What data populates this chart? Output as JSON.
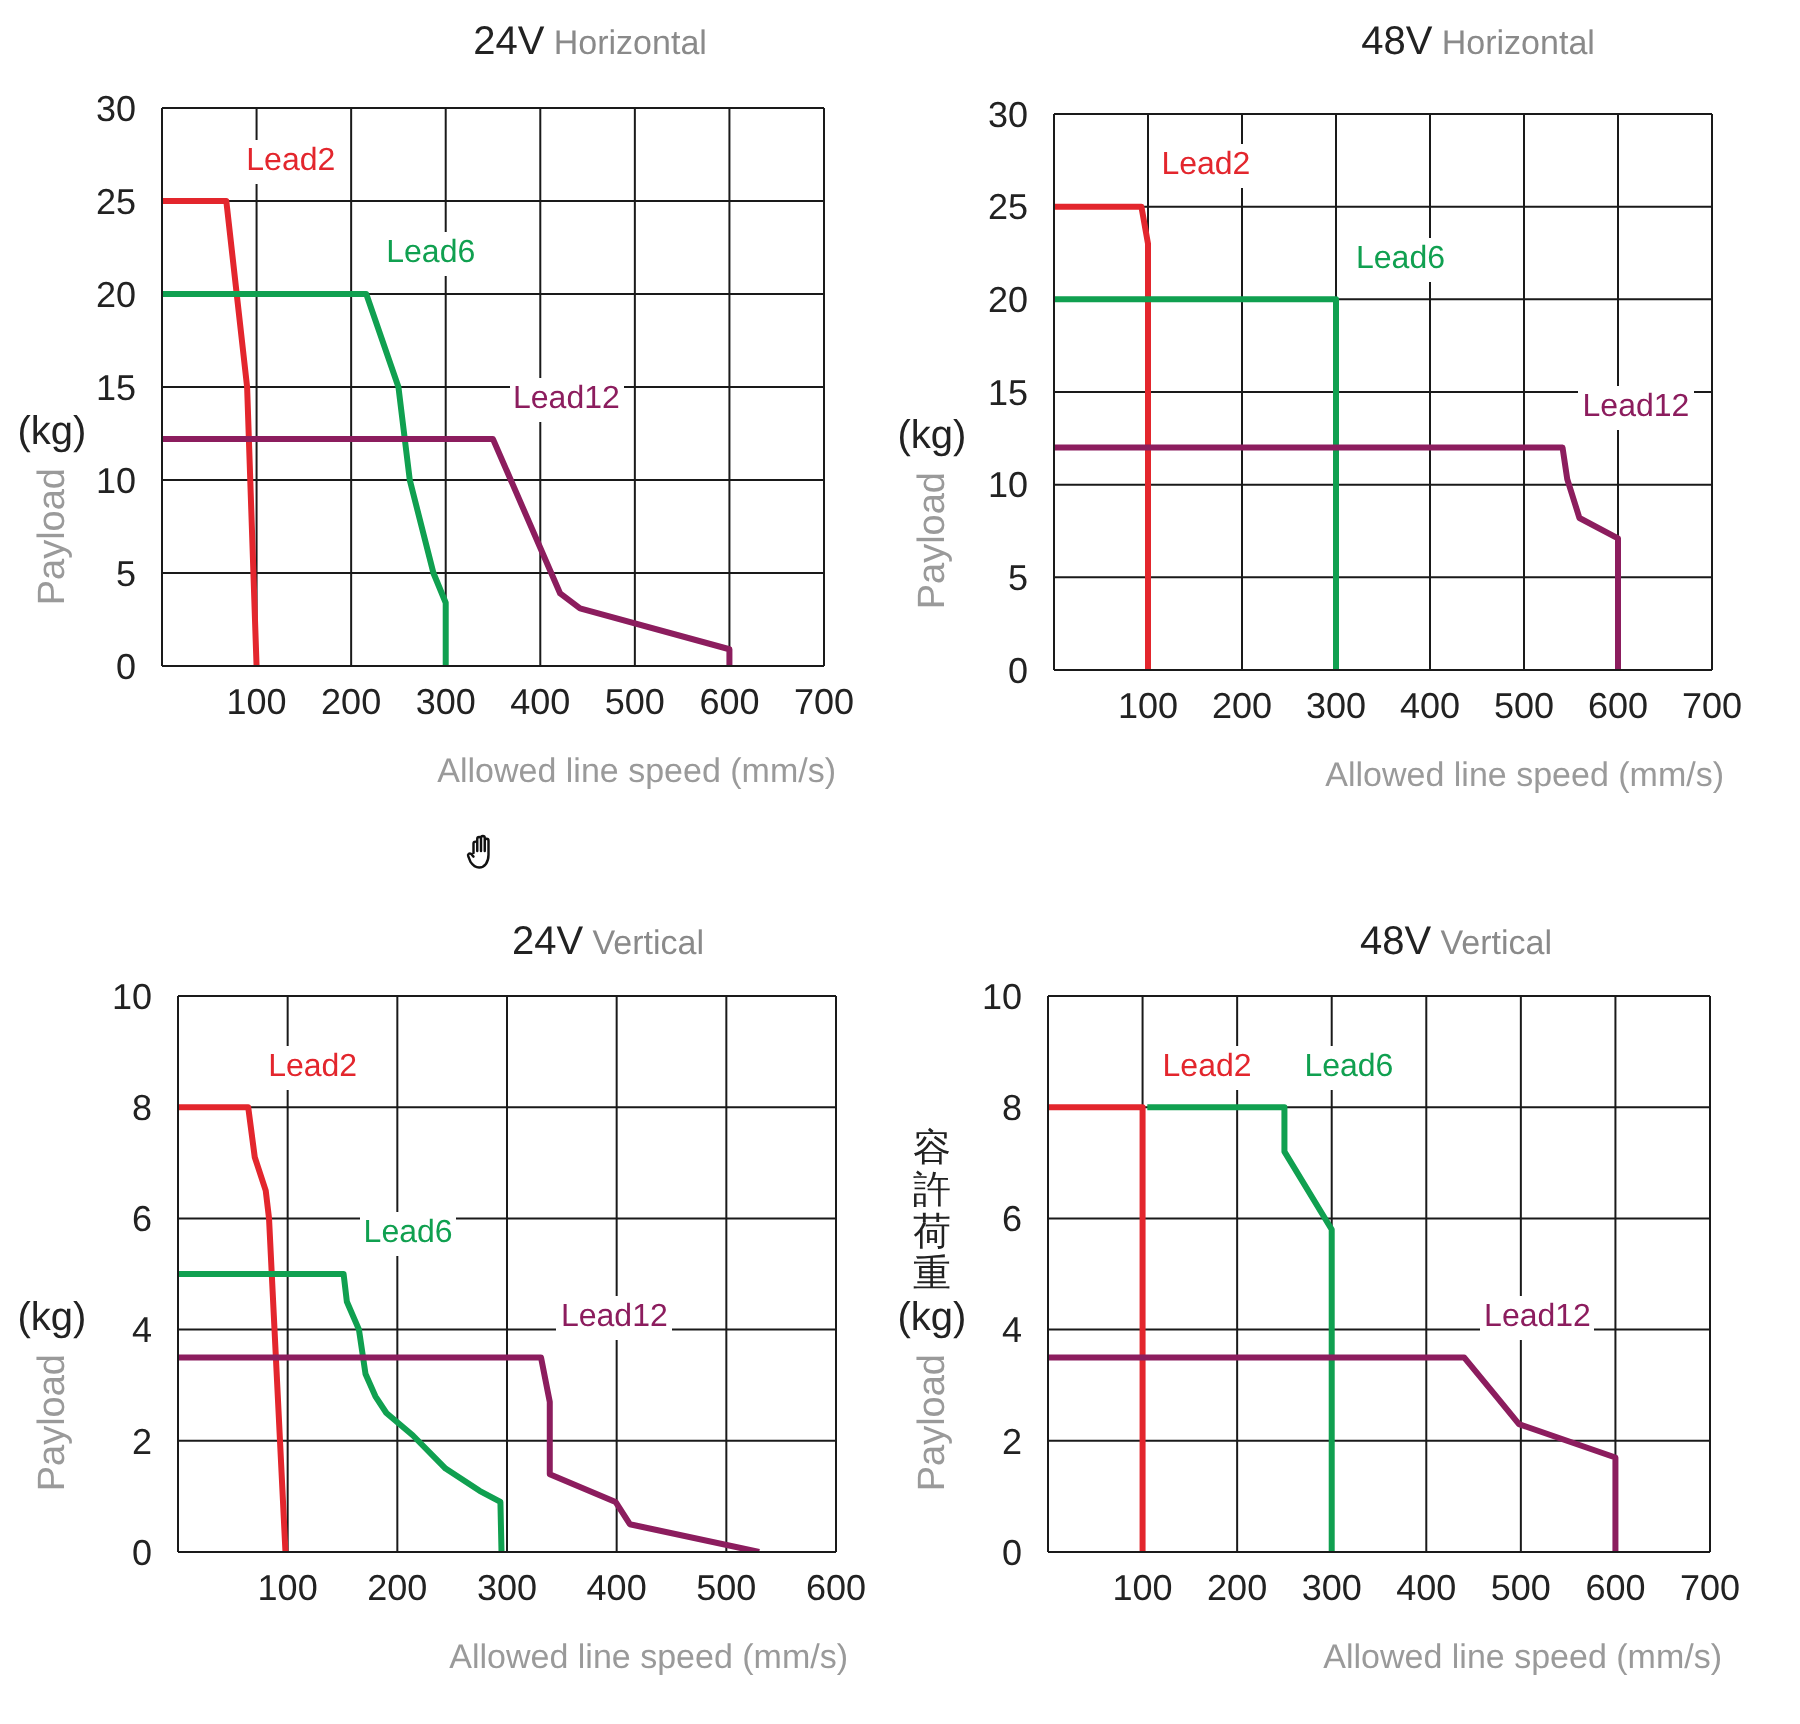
{
  "chart_data": [
    {
      "type": "line",
      "title": "24V Horizontal",
      "xlabel": "Allowed line speed (mm/s)",
      "ylabel": "(kg) Payload",
      "xlim": [
        0,
        700
      ],
      "xticks": [
        100,
        200,
        300,
        400,
        500,
        600,
        700
      ],
      "ylim": [
        0,
        30
      ],
      "yticks": [
        0,
        5,
        10,
        15,
        20,
        25,
        30
      ],
      "grid": true,
      "series": [
        {
          "name": "Lead2",
          "color": "#e3262d",
          "x": [
            0,
            68,
            90,
            100
          ],
          "values": [
            25,
            25,
            15,
            0
          ]
        },
        {
          "name": "Lead6",
          "color": "#10a050",
          "x": [
            0,
            216,
            250,
            262,
            287,
            300,
            300
          ],
          "values": [
            20,
            20,
            15,
            10,
            5,
            3.4,
            0
          ]
        },
        {
          "name": "Lead12",
          "color": "#8c1d5e",
          "x": [
            0,
            350,
            421,
            442,
            600,
            600
          ],
          "values": [
            12.2,
            12.2,
            3.9,
            3.1,
            0.9,
            0
          ]
        }
      ]
    },
    {
      "type": "line",
      "title": "48V Horizontal",
      "xlabel": "Allowed line speed (mm/s)",
      "ylabel": "(kg) Payload",
      "xlim": [
        0,
        700
      ],
      "xticks": [
        100,
        200,
        300,
        400,
        500,
        600,
        700
      ],
      "ylim": [
        0,
        30
      ],
      "yticks": [
        0,
        5,
        10,
        15,
        20,
        25,
        30
      ],
      "grid": true,
      "series": [
        {
          "name": "Lead2",
          "color": "#e3262d",
          "x": [
            0,
            93,
            100,
            100
          ],
          "values": [
            25,
            25,
            23,
            0
          ]
        },
        {
          "name": "Lead6",
          "color": "#10a050",
          "x": [
            0,
            300,
            300
          ],
          "values": [
            20,
            20,
            0
          ]
        },
        {
          "name": "Lead12",
          "color": "#8c1d5e",
          "x": [
            0,
            541,
            546,
            559,
            600,
            600
          ],
          "values": [
            12,
            12,
            10.3,
            8.2,
            7.1,
            0
          ]
        }
      ]
    },
    {
      "type": "line",
      "title": "24V Vertical",
      "xlabel": "Allowed line speed (mm/s)",
      "ylabel": "(kg) Payload",
      "xlim": [
        0,
        600
      ],
      "xticks": [
        100,
        200,
        300,
        400,
        500,
        600
      ],
      "ylim": [
        0,
        10
      ],
      "yticks": [
        0,
        2,
        4,
        6,
        8,
        10
      ],
      "grid": true,
      "series": [
        {
          "name": "Lead2",
          "color": "#e3262d",
          "x": [
            0,
            64,
            70,
            80,
            83,
            98
          ],
          "values": [
            8,
            8,
            7.1,
            6.5,
            6,
            0
          ]
        },
        {
          "name": "Lead6",
          "color": "#10a050",
          "x": [
            0,
            151,
            154,
            165,
            171,
            180,
            190,
            214,
            244,
            275,
            294,
            295
          ],
          "values": [
            5,
            5,
            4.5,
            4,
            3.2,
            2.8,
            2.5,
            2.1,
            1.5,
            1.1,
            0.9,
            0
          ]
        },
        {
          "name": "Lead12",
          "color": "#8c1d5e",
          "x": [
            0,
            331,
            339,
            339,
            399,
            412,
            530
          ],
          "values": [
            3.5,
            3.5,
            2.7,
            1.4,
            0.9,
            0.5,
            0
          ]
        }
      ]
    },
    {
      "type": "line",
      "title": "48V Vertical",
      "xlabel": "Allowed line speed (mm/s)",
      "ylabel": "容許荷重 (kg) Payload",
      "xlim": [
        0,
        700
      ],
      "xticks": [
        100,
        200,
        300,
        400,
        500,
        600,
        700
      ],
      "ylim": [
        0,
        10
      ],
      "yticks": [
        0,
        2,
        4,
        6,
        8,
        10
      ],
      "grid": true,
      "series": [
        {
          "name": "Lead2",
          "color": "#e3262d",
          "x": [
            0,
            100,
            100
          ],
          "values": [
            8,
            8,
            0
          ]
        },
        {
          "name": "Lead6",
          "color": "#10a050",
          "x": [
            105,
            250,
            250,
            300,
            300
          ],
          "values": [
            8,
            8,
            7.2,
            5.8,
            0
          ]
        },
        {
          "name": "Lead12",
          "color": "#8c1d5e",
          "x": [
            0,
            440,
            474,
            498,
            600,
            600
          ],
          "values": [
            3.5,
            3.5,
            2.8,
            2.3,
            1.7,
            0
          ]
        }
      ]
    }
  ]
}
